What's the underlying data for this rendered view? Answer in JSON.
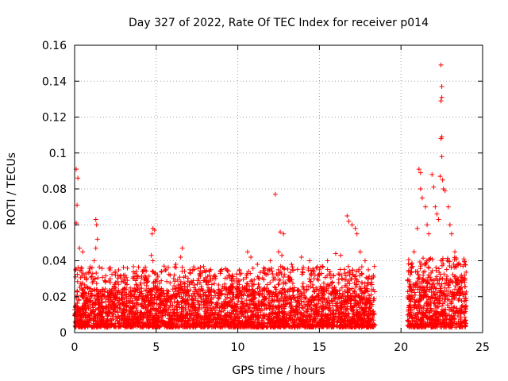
{
  "chart_data": {
    "type": "scatter",
    "title": "Day 327 of 2022, Rate Of TEC Index for receiver p014",
    "xlabel": "GPS time / hours",
    "ylabel": "ROTI / TECUs",
    "xlim": [
      0,
      25
    ],
    "ylim": [
      0,
      0.16
    ],
    "xticks": [
      0,
      5,
      10,
      15,
      20,
      25
    ],
    "xtick_labels": [
      "0",
      "5",
      "10",
      "15",
      "20",
      "25"
    ],
    "yticks": [
      0,
      0.02,
      0.04,
      0.06,
      0.08,
      0.1,
      0.12,
      0.14,
      0.16
    ],
    "ytick_labels": [
      "0",
      "0.02",
      "0.04",
      "0.06",
      "0.08",
      "0.1",
      "0.12",
      "0.14",
      "0.16"
    ],
    "grid": true,
    "marker": "+",
    "series_color": "#ff0000",
    "data_gap_hours": [
      18.4,
      20.4
    ],
    "series": [
      {
        "name": "ROTI",
        "points": [
          [
            0.1,
            0.091
          ],
          [
            0.2,
            0.086
          ],
          [
            0.15,
            0.071
          ],
          [
            0.1,
            0.061
          ],
          [
            0.3,
            0.047
          ],
          [
            0.5,
            0.045
          ],
          [
            0.4,
            0.036
          ],
          [
            1.3,
            0.063
          ],
          [
            1.35,
            0.06
          ],
          [
            1.4,
            0.052
          ],
          [
            1.3,
            0.047
          ],
          [
            1.2,
            0.04
          ],
          [
            2.2,
            0.036
          ],
          [
            2.5,
            0.032
          ],
          [
            3.1,
            0.028
          ],
          [
            3.6,
            0.031
          ],
          [
            4.2,
            0.034
          ],
          [
            4.8,
            0.058
          ],
          [
            4.9,
            0.057
          ],
          [
            4.75,
            0.055
          ],
          [
            4.7,
            0.043
          ],
          [
            4.8,
            0.04
          ],
          [
            5.1,
            0.031
          ],
          [
            5.6,
            0.035
          ],
          [
            6.2,
            0.038
          ],
          [
            6.6,
            0.047
          ],
          [
            6.5,
            0.042
          ],
          [
            7.1,
            0.033
          ],
          [
            7.6,
            0.03
          ],
          [
            8.1,
            0.028
          ],
          [
            8.6,
            0.032
          ],
          [
            9.2,
            0.027
          ],
          [
            9.6,
            0.031
          ],
          [
            10.1,
            0.035
          ],
          [
            10.6,
            0.045
          ],
          [
            10.8,
            0.042
          ],
          [
            11.2,
            0.038
          ],
          [
            11.6,
            0.036
          ],
          [
            12.0,
            0.04
          ],
          [
            12.3,
            0.077
          ],
          [
            12.5,
            0.045
          ],
          [
            12.6,
            0.056
          ],
          [
            12.8,
            0.055
          ],
          [
            12.7,
            0.043
          ],
          [
            13.3,
            0.038
          ],
          [
            13.9,
            0.042
          ],
          [
            14.4,
            0.04
          ],
          [
            15.0,
            0.035
          ],
          [
            15.5,
            0.04
          ],
          [
            16.0,
            0.044
          ],
          [
            16.3,
            0.043
          ],
          [
            16.7,
            0.065
          ],
          [
            16.8,
            0.062
          ],
          [
            17.0,
            0.06
          ],
          [
            17.2,
            0.058
          ],
          [
            17.3,
            0.055
          ],
          [
            17.5,
            0.045
          ],
          [
            17.8,
            0.04
          ],
          [
            18.0,
            0.035
          ],
          [
            18.2,
            0.028
          ],
          [
            18.3,
            0.024
          ],
          [
            20.6,
            0.034
          ],
          [
            20.8,
            0.045
          ],
          [
            21.0,
            0.058
          ],
          [
            21.1,
            0.091
          ],
          [
            21.2,
            0.089
          ],
          [
            21.2,
            0.08
          ],
          [
            21.3,
            0.075
          ],
          [
            21.5,
            0.07
          ],
          [
            21.6,
            0.06
          ],
          [
            21.7,
            0.055
          ],
          [
            21.9,
            0.088
          ],
          [
            22.0,
            0.081
          ],
          [
            22.1,
            0.07
          ],
          [
            22.2,
            0.066
          ],
          [
            22.3,
            0.063
          ],
          [
            22.45,
            0.149
          ],
          [
            22.5,
            0.137
          ],
          [
            22.5,
            0.131
          ],
          [
            22.45,
            0.129
          ],
          [
            22.5,
            0.109
          ],
          [
            22.45,
            0.108
          ],
          [
            22.5,
            0.098
          ],
          [
            22.4,
            0.087
          ],
          [
            22.55,
            0.085
          ],
          [
            22.6,
            0.08
          ],
          [
            22.7,
            0.079
          ],
          [
            22.9,
            0.07
          ],
          [
            23.0,
            0.06
          ],
          [
            23.1,
            0.055
          ],
          [
            23.3,
            0.045
          ],
          [
            23.5,
            0.038
          ],
          [
            23.7,
            0.032
          ],
          [
            23.9,
            0.028
          ]
        ]
      }
    ],
    "baseline_band": [
      {
        "x_start": 0.0,
        "x_end": 18.4,
        "y_low": 0.003,
        "y_high": 0.025
      },
      {
        "x_start": 20.4,
        "x_end": 24.0,
        "y_low": 0.003,
        "y_high": 0.03
      }
    ]
  }
}
